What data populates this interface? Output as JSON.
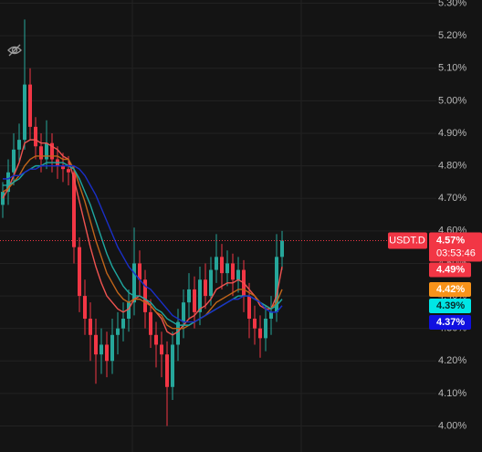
{
  "chart_data": {
    "type": "candlestick",
    "symbol": "USDT.D",
    "last_label": "4.57%",
    "countdown": "03:53:46",
    "up_color": "#26a69a",
    "down_color": "#f23645",
    "grid": true,
    "ylim": [
      3.92,
      5.31
    ],
    "yticks": [
      {
        "value": 4.0,
        "label": "4.00%"
      },
      {
        "value": 4.1,
        "label": "4.10%"
      },
      {
        "value": 4.2,
        "label": "4.20%"
      },
      {
        "value": 4.3,
        "label": "4.30%"
      },
      {
        "value": 4.4,
        "label": "4.40%"
      },
      {
        "value": 4.5,
        "label": "4.50%"
      },
      {
        "value": 4.6,
        "label": "4.60%"
      },
      {
        "value": 4.7,
        "label": "4.70%"
      },
      {
        "value": 4.8,
        "label": "4.80%"
      },
      {
        "value": 4.9,
        "label": "4.90%"
      },
      {
        "value": 5.0,
        "label": "5.00%"
      },
      {
        "value": 5.1,
        "label": "5.10%"
      },
      {
        "value": 5.2,
        "label": "5.20%"
      },
      {
        "value": 5.3,
        "label": "5.30%"
      }
    ],
    "open": [
      4.68,
      4.72,
      4.78,
      4.85,
      4.88,
      5.05,
      4.92,
      4.86,
      4.82,
      4.87,
      4.82,
      4.8,
      4.79,
      4.78,
      4.55,
      4.4,
      4.33,
      4.28,
      4.22,
      4.25,
      4.2,
      4.28,
      4.3,
      4.33,
      4.38,
      4.5,
      4.45,
      4.35,
      4.28,
      4.25,
      4.22,
      4.12,
      4.25,
      4.32,
      4.38,
      4.42,
      4.35,
      4.45,
      4.4,
      4.48,
      4.52,
      4.47,
      4.5,
      4.45,
      4.48,
      4.4,
      4.33,
      4.3,
      4.27,
      4.33,
      4.35,
      4.52
    ],
    "high": [
      4.75,
      4.82,
      4.9,
      4.93,
      5.25,
      5.1,
      4.95,
      4.9,
      4.94,
      4.9,
      4.86,
      4.84,
      4.83,
      4.8,
      4.58,
      4.45,
      4.38,
      4.33,
      4.3,
      4.29,
      4.33,
      4.35,
      4.38,
      4.42,
      4.61,
      4.54,
      4.48,
      4.39,
      4.32,
      4.29,
      4.26,
      4.29,
      4.36,
      4.42,
      4.47,
      4.46,
      4.49,
      4.5,
      4.52,
      4.59,
      4.56,
      4.54,
      4.53,
      4.52,
      4.51,
      4.44,
      4.37,
      4.34,
      4.37,
      4.4,
      4.59,
      4.6
    ],
    "low": [
      4.64,
      4.68,
      4.74,
      4.81,
      4.85,
      4.88,
      4.82,
      4.78,
      4.79,
      4.78,
      4.76,
      4.75,
      4.74,
      4.5,
      4.35,
      4.28,
      4.2,
      4.13,
      4.16,
      4.15,
      4.16,
      4.22,
      4.26,
      4.29,
      4.34,
      4.4,
      4.3,
      4.24,
      4.18,
      4.15,
      4.0,
      4.08,
      4.2,
      4.27,
      4.33,
      4.3,
      4.31,
      4.36,
      4.37,
      4.44,
      4.42,
      4.43,
      4.4,
      4.41,
      4.35,
      4.27,
      4.25,
      4.21,
      4.23,
      4.28,
      4.32,
      4.48
    ],
    "close": [
      4.72,
      4.78,
      4.85,
      4.88,
      5.05,
      4.92,
      4.86,
      4.82,
      4.87,
      4.82,
      4.8,
      4.79,
      4.78,
      4.55,
      4.4,
      4.33,
      4.28,
      4.22,
      4.25,
      4.2,
      4.28,
      4.3,
      4.33,
      4.38,
      4.5,
      4.45,
      4.35,
      4.28,
      4.25,
      4.22,
      4.12,
      4.25,
      4.32,
      4.38,
      4.42,
      4.35,
      4.45,
      4.4,
      4.48,
      4.52,
      4.47,
      4.5,
      4.45,
      4.48,
      4.4,
      4.33,
      4.3,
      4.27,
      4.33,
      4.35,
      4.52,
      4.57
    ],
    "series": [
      {
        "color": "#ef5350",
        "badge_color": "#f23645",
        "text_color": "#ffffff",
        "value_label": "4.49%",
        "values": [
          4.7,
          4.73,
          4.77,
          4.81,
          4.87,
          4.88,
          4.88,
          4.87,
          4.87,
          4.86,
          4.85,
          4.83,
          4.82,
          4.76,
          4.69,
          4.62,
          4.55,
          4.49,
          4.44,
          4.4,
          4.38,
          4.36,
          4.35,
          4.36,
          4.39,
          4.4,
          4.39,
          4.37,
          4.35,
          4.33,
          4.29,
          4.28,
          4.29,
          4.31,
          4.33,
          4.34,
          4.36,
          4.37,
          4.39,
          4.42,
          4.43,
          4.44,
          4.44,
          4.45,
          4.44,
          4.42,
          4.4,
          4.37,
          4.36,
          4.36,
          4.4,
          4.49
        ]
      },
      {
        "color": "#c0651a",
        "badge_color": "#f7931a",
        "text_color": "#ffffff",
        "value_label": "4.42%",
        "values": [
          4.72,
          4.73,
          4.75,
          4.77,
          4.8,
          4.82,
          4.83,
          4.83,
          4.83,
          4.83,
          4.83,
          4.82,
          4.82,
          4.79,
          4.74,
          4.69,
          4.63,
          4.57,
          4.52,
          4.47,
          4.44,
          4.41,
          4.39,
          4.38,
          4.39,
          4.39,
          4.38,
          4.37,
          4.35,
          4.34,
          4.31,
          4.3,
          4.3,
          4.3,
          4.31,
          4.32,
          4.33,
          4.34,
          4.36,
          4.38,
          4.39,
          4.4,
          4.41,
          4.42,
          4.42,
          4.41,
          4.4,
          4.38,
          4.37,
          4.36,
          4.38,
          4.42
        ]
      },
      {
        "color": "#1fa8a0",
        "badge_color": "#00e5e5",
        "text_color": "#0a2a2a",
        "value_label": "4.39%",
        "values": [
          4.74,
          4.74,
          4.75,
          4.76,
          4.78,
          4.79,
          4.8,
          4.8,
          4.81,
          4.81,
          4.81,
          4.81,
          4.8,
          4.79,
          4.76,
          4.72,
          4.68,
          4.63,
          4.58,
          4.53,
          4.49,
          4.46,
          4.43,
          4.41,
          4.4,
          4.4,
          4.39,
          4.38,
          4.36,
          4.35,
          4.33,
          4.32,
          4.31,
          4.31,
          4.31,
          4.32,
          4.33,
          4.34,
          4.35,
          4.36,
          4.37,
          4.38,
          4.39,
          4.4,
          4.4,
          4.4,
          4.39,
          4.38,
          4.37,
          4.36,
          4.37,
          4.39
        ]
      },
      {
        "color": "#1a2fc8",
        "badge_color": "#1010e0",
        "text_color": "#ffffff",
        "value_label": "4.37%",
        "values": [
          4.76,
          4.76,
          4.77,
          4.77,
          4.78,
          4.79,
          4.79,
          4.8,
          4.8,
          4.8,
          4.8,
          4.8,
          4.8,
          4.8,
          4.79,
          4.77,
          4.74,
          4.71,
          4.67,
          4.63,
          4.59,
          4.55,
          4.52,
          4.49,
          4.47,
          4.45,
          4.43,
          4.42,
          4.4,
          4.38,
          4.36,
          4.34,
          4.33,
          4.32,
          4.32,
          4.32,
          4.33,
          4.34,
          4.35,
          4.36,
          4.37,
          4.38,
          4.39,
          4.39,
          4.4,
          4.4,
          4.39,
          4.38,
          4.36,
          4.35,
          4.35,
          4.37
        ]
      }
    ]
  }
}
